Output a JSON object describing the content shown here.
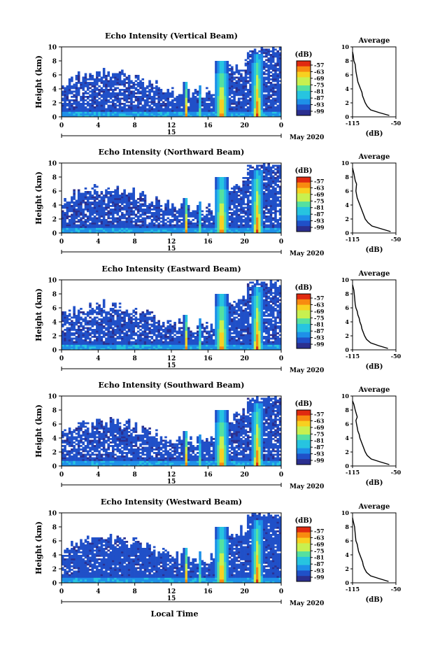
{
  "figure": {
    "xlabel": "Local Time",
    "date_label": "May 2020",
    "day_label": "15",
    "colorbar_unit": "(dB)",
    "colorbar_ticks": [
      "-57",
      "-63",
      "-69",
      "-75",
      "-81",
      "-87",
      "-93",
      "-99"
    ],
    "profile_title": "Average",
    "profile_xlabel": "(dB)",
    "height_label": "Height (km)",
    "colors": {
      "colormap": [
        "#2b2f8f",
        "#2050c8",
        "#1e90e8",
        "#27c4e0",
        "#55e0a0",
        "#c8f050",
        "#f8d020",
        "#f88a10",
        "#e02a10"
      ],
      "background": "#ffffff"
    }
  },
  "chart_data": [
    {
      "type": "heatmap",
      "title": "Echo Intensity (Vertical Beam)",
      "ylabel": "Height (km)",
      "ylim": [
        0,
        10
      ],
      "yticks": [
        "0",
        "2",
        "4",
        "6",
        "8",
        "10"
      ],
      "xlim": [
        0,
        24
      ],
      "xticks": [
        "0",
        "4",
        "8",
        "12",
        "16",
        "20",
        "0"
      ],
      "colorbar_range": [
        -99,
        -57
      ],
      "profile": {
        "title": "Average",
        "xlim": [
          -115,
          -50
        ],
        "xticks": [
          "-115",
          "-50"
        ],
        "yticks": [
          "0",
          "2",
          "4",
          "6",
          "8",
          "10"
        ],
        "xlabel": "(dB)",
        "x": [
          -60,
          -75,
          -88,
          -93,
          -96,
          -98,
          -100,
          -101,
          -103,
          -105,
          -107,
          -108,
          -109,
          -110,
          -111,
          -113,
          -114,
          -115
        ],
        "y": [
          0.2,
          0.6,
          1.0,
          1.5,
          2.0,
          2.5,
          3.0,
          3.5,
          4.0,
          4.5,
          5.0,
          5.5,
          6.0,
          6.5,
          7.5,
          8.0,
          8.8,
          9.3
        ]
      }
    },
    {
      "type": "heatmap",
      "title": "Echo Intensity (Northward Beam)",
      "ylabel": "Height (km)",
      "ylim": [
        0,
        10
      ],
      "yticks": [
        "0",
        "2",
        "4",
        "6",
        "8",
        "10"
      ],
      "xlim": [
        0,
        24
      ],
      "xticks": [
        "0",
        "4",
        "8",
        "12",
        "16",
        "20",
        "0"
      ],
      "colorbar_range": [
        -99,
        -57
      ],
      "profile": {
        "title": "Average",
        "xlim": [
          -115,
          -50
        ],
        "xticks": [
          "-115",
          "-50"
        ],
        "yticks": [
          "0",
          "2",
          "4",
          "6",
          "8",
          "10"
        ],
        "xlabel": "(dB)",
        "x": [
          -58,
          -72,
          -86,
          -92,
          -96,
          -98,
          -100,
          -102,
          -104,
          -106,
          -108,
          -109,
          -110,
          -109,
          -111,
          -113,
          -115
        ],
        "y": [
          0.2,
          0.6,
          1.0,
          1.5,
          2.0,
          2.5,
          3.0,
          3.5,
          4.0,
          4.5,
          5.0,
          5.5,
          6.0,
          7.0,
          7.5,
          8.5,
          9.3
        ]
      }
    },
    {
      "type": "heatmap",
      "title": "Echo Intensity (Eastward Beam)",
      "ylabel": "Height (km)",
      "ylim": [
        0,
        10
      ],
      "yticks": [
        "0",
        "2",
        "4",
        "6",
        "8",
        "10"
      ],
      "xlim": [
        0,
        24
      ],
      "xticks": [
        "0",
        "4",
        "8",
        "12",
        "16",
        "20",
        "0"
      ],
      "colorbar_range": [
        -99,
        -57
      ],
      "profile": {
        "title": "Average",
        "xlim": [
          -115,
          -50
        ],
        "xticks": [
          "-115",
          "-50"
        ],
        "yticks": [
          "0",
          "2",
          "4",
          "6",
          "8",
          "10"
        ],
        "xlabel": "(dB)",
        "x": [
          -62,
          -76,
          -88,
          -94,
          -97,
          -99,
          -101,
          -102,
          -104,
          -105,
          -107,
          -108,
          -110,
          -111,
          -112,
          -113,
          -115
        ],
        "y": [
          0.2,
          0.6,
          1.0,
          1.5,
          2.0,
          2.5,
          3.0,
          3.5,
          4.0,
          4.5,
          5.0,
          5.5,
          6.0,
          6.5,
          7.5,
          8.5,
          9.3
        ]
      }
    },
    {
      "type": "heatmap",
      "title": "Echo Intensity (Southward Beam)",
      "ylabel": "Height (km)",
      "ylim": [
        0,
        10
      ],
      "yticks": [
        "0",
        "2",
        "4",
        "6",
        "8",
        "10"
      ],
      "xlim": [
        0,
        24
      ],
      "xticks": [
        "0",
        "4",
        "8",
        "12",
        "16",
        "20",
        "0"
      ],
      "colorbar_range": [
        -99,
        -57
      ],
      "profile": {
        "title": "Average",
        "xlim": [
          -115,
          -50
        ],
        "xticks": [
          "-115",
          "-50"
        ],
        "yticks": [
          "0",
          "2",
          "4",
          "6",
          "8",
          "10"
        ],
        "xlabel": "(dB)",
        "x": [
          -60,
          -74,
          -87,
          -93,
          -96,
          -98,
          -100,
          -102,
          -104,
          -105,
          -107,
          -108,
          -109,
          -110,
          -108,
          -111,
          -113,
          -115
        ],
        "y": [
          0.2,
          0.6,
          1.0,
          1.5,
          2.0,
          2.5,
          3.0,
          3.5,
          4.0,
          4.5,
          5.0,
          5.5,
          6.0,
          6.5,
          7.0,
          8.0,
          8.8,
          9.3
        ]
      }
    },
    {
      "type": "heatmap",
      "title": "Echo Intensity (Westward Beam)",
      "ylabel": "Height (km)",
      "ylim": [
        0,
        10
      ],
      "yticks": [
        "0",
        "2",
        "4",
        "6",
        "8",
        "10"
      ],
      "xlim": [
        0,
        24
      ],
      "xticks": [
        "0",
        "4",
        "8",
        "12",
        "16",
        "20",
        "0"
      ],
      "colorbar_range": [
        -99,
        -57
      ],
      "profile": {
        "title": "Average",
        "xlim": [
          -115,
          -50
        ],
        "xticks": [
          "-115",
          "-50"
        ],
        "yticks": [
          "0",
          "2",
          "4",
          "6",
          "8",
          "10"
        ],
        "xlabel": "(dB)",
        "x": [
          -61,
          -75,
          -88,
          -94,
          -97,
          -99,
          -100,
          -102,
          -104,
          -106,
          -107,
          -108,
          -110,
          -111,
          -112,
          -114,
          -115
        ],
        "y": [
          0.2,
          0.6,
          1.0,
          1.5,
          2.0,
          2.5,
          3.0,
          3.5,
          4.0,
          4.5,
          5.0,
          5.5,
          6.0,
          7.0,
          8.0,
          8.8,
          9.3
        ]
      }
    }
  ]
}
